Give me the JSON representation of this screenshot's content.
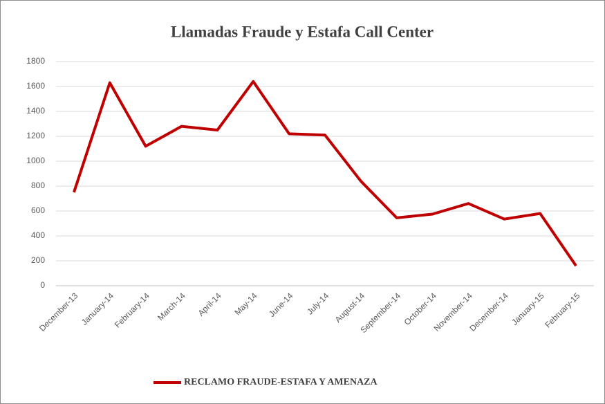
{
  "chart_data": {
    "type": "line",
    "title": "Llamadas Fraude y Estafa Call Center",
    "categories": [
      "December-13",
      "January-14",
      "February-14",
      "March-14",
      "April-14",
      "May-14",
      "June-14",
      "July-14",
      "August-14",
      "September-14",
      "October-14",
      "November-14",
      "December-14",
      "January-15",
      "February-15"
    ],
    "series": [
      {
        "name": "RECLAMO FRAUDE-ESTAFA Y AMENAZA",
        "color": "#c00000",
        "values": [
          750,
          1630,
          1120,
          1280,
          1250,
          1640,
          1220,
          1210,
          840,
          545,
          575,
          660,
          535,
          580,
          160
        ]
      }
    ],
    "ylim": [
      0,
      1800
    ],
    "yticks": [
      0,
      200,
      400,
      600,
      800,
      1000,
      1200,
      1400,
      1600,
      1800
    ],
    "grid": true,
    "legend": "bottom"
  }
}
